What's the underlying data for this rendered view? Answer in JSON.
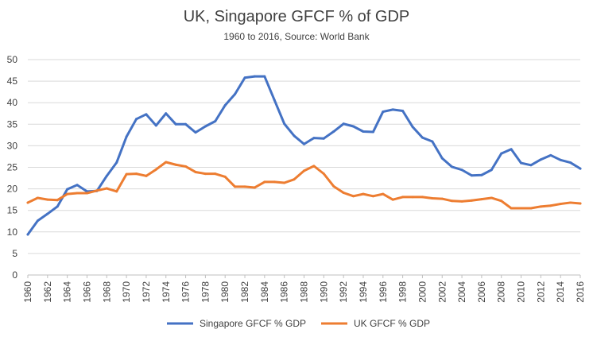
{
  "chart_data": {
    "type": "line",
    "title": "UK, Singapore GFCF % of GDP",
    "subtitle": "1960 to 2016, Source: World Bank",
    "xlabel": "",
    "ylabel": "",
    "ylim": [
      0,
      50
    ],
    "yticks": [
      "0",
      "5",
      "10",
      "15",
      "20",
      "25",
      "30",
      "35",
      "40",
      "45",
      "50"
    ],
    "x": [
      1960,
      1961,
      1962,
      1963,
      1964,
      1965,
      1966,
      1967,
      1968,
      1969,
      1970,
      1971,
      1972,
      1973,
      1974,
      1975,
      1976,
      1977,
      1978,
      1979,
      1980,
      1981,
      1982,
      1983,
      1984,
      1985,
      1986,
      1987,
      1988,
      1989,
      1990,
      1991,
      1992,
      1993,
      1994,
      1995,
      1996,
      1997,
      1998,
      1999,
      2000,
      2001,
      2002,
      2003,
      2004,
      2005,
      2006,
      2007,
      2008,
      2009,
      2010,
      2011,
      2012,
      2013,
      2014,
      2015,
      2016
    ],
    "xticks": [
      "1960",
      "1962",
      "1964",
      "1966",
      "1968",
      "1970",
      "1972",
      "1974",
      "1976",
      "1978",
      "1980",
      "1982",
      "1984",
      "1986",
      "1988",
      "1990",
      "1992",
      "1994",
      "1996",
      "1998",
      "2000",
      "2002",
      "2004",
      "2006",
      "2008",
      "2010",
      "2012",
      "2014",
      "2016"
    ],
    "grid": true,
    "legend_position": "bottom",
    "series": [
      {
        "name": "Singapore GFCF % GDP",
        "color": "#4472C4",
        "values": [
          9.4,
          12.6,
          14.2,
          15.9,
          19.9,
          20.9,
          19.4,
          19.5,
          23.0,
          26.1,
          32.1,
          36.2,
          37.3,
          34.7,
          37.5,
          35.0,
          35.0,
          33.1,
          34.5,
          35.7,
          39.4,
          42.0,
          45.8,
          46.1,
          46.1,
          40.6,
          35.1,
          32.3,
          30.4,
          31.8,
          31.7,
          33.3,
          35.1,
          34.5,
          33.3,
          33.2,
          37.9,
          38.4,
          38.1,
          34.4,
          31.9,
          31.0,
          27.1,
          25.1,
          24.4,
          23.1,
          23.2,
          24.4,
          28.2,
          29.2,
          26.0,
          25.5,
          26.8,
          27.8,
          26.7,
          26.1,
          24.7
        ]
      },
      {
        "name": "UK GFCF % GDP",
        "color": "#ED7D31",
        "values": [
          16.8,
          17.9,
          17.5,
          17.4,
          18.8,
          19.0,
          19.0,
          19.6,
          20.1,
          19.4,
          23.4,
          23.5,
          23.0,
          24.5,
          26.2,
          25.6,
          25.2,
          23.9,
          23.5,
          23.5,
          22.8,
          20.5,
          20.5,
          20.3,
          21.6,
          21.6,
          21.4,
          22.2,
          24.2,
          25.3,
          23.5,
          20.6,
          19.1,
          18.3,
          18.8,
          18.3,
          18.8,
          17.5,
          18.1,
          18.1,
          18.1,
          17.8,
          17.7,
          17.2,
          17.1,
          17.3,
          17.6,
          17.9,
          17.2,
          15.5,
          15.5,
          15.5,
          15.9,
          16.1,
          16.5,
          16.8,
          16.6
        ]
      }
    ]
  }
}
